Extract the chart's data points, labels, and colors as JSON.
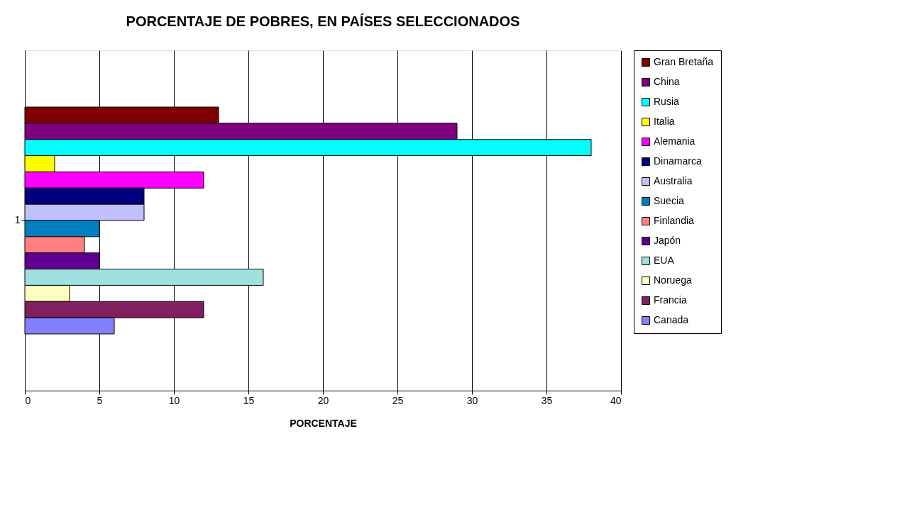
{
  "chart_data": {
    "type": "bar",
    "orientation": "horizontal",
    "title": "PORCENTAJE DE POBRES, EN PAÍSES SELECCIONADOS",
    "xlabel": "PORCENTAJE",
    "categories": [
      "1"
    ],
    "series": [
      {
        "name": "Gran Bretaña",
        "color": "#800000",
        "values": [
          13
        ]
      },
      {
        "name": "China",
        "color": "#800080",
        "values": [
          29
        ]
      },
      {
        "name": "Rusia",
        "color": "#00ffff",
        "values": [
          38
        ]
      },
      {
        "name": "Italia",
        "color": "#ffff00",
        "values": [
          2
        ]
      },
      {
        "name": "Alemania",
        "color": "#ff00ff",
        "values": [
          12
        ]
      },
      {
        "name": "Dinamarca",
        "color": "#000080",
        "values": [
          8
        ]
      },
      {
        "name": "Australia",
        "color": "#c0c0ff",
        "values": [
          8
        ]
      },
      {
        "name": "Suecia",
        "color": "#0080c0",
        "values": [
          5
        ]
      },
      {
        "name": "Finlandia",
        "color": "#ff8080",
        "values": [
          4
        ]
      },
      {
        "name": "Japón",
        "color": "#600090",
        "values": [
          5
        ]
      },
      {
        "name": "EUA",
        "color": "#a0e0e0",
        "values": [
          16
        ]
      },
      {
        "name": "Noruega",
        "color": "#ffffc0",
        "values": [
          3
        ]
      },
      {
        "name": "Francia",
        "color": "#802060",
        "values": [
          12
        ]
      },
      {
        "name": "Canada",
        "color": "#8080ff",
        "values": [
          6
        ]
      }
    ],
    "xlim": [
      0,
      40
    ],
    "xticks": [
      0,
      5,
      10,
      15,
      20,
      25,
      30,
      35,
      40
    ],
    "grid": "x",
    "legend": "right"
  }
}
